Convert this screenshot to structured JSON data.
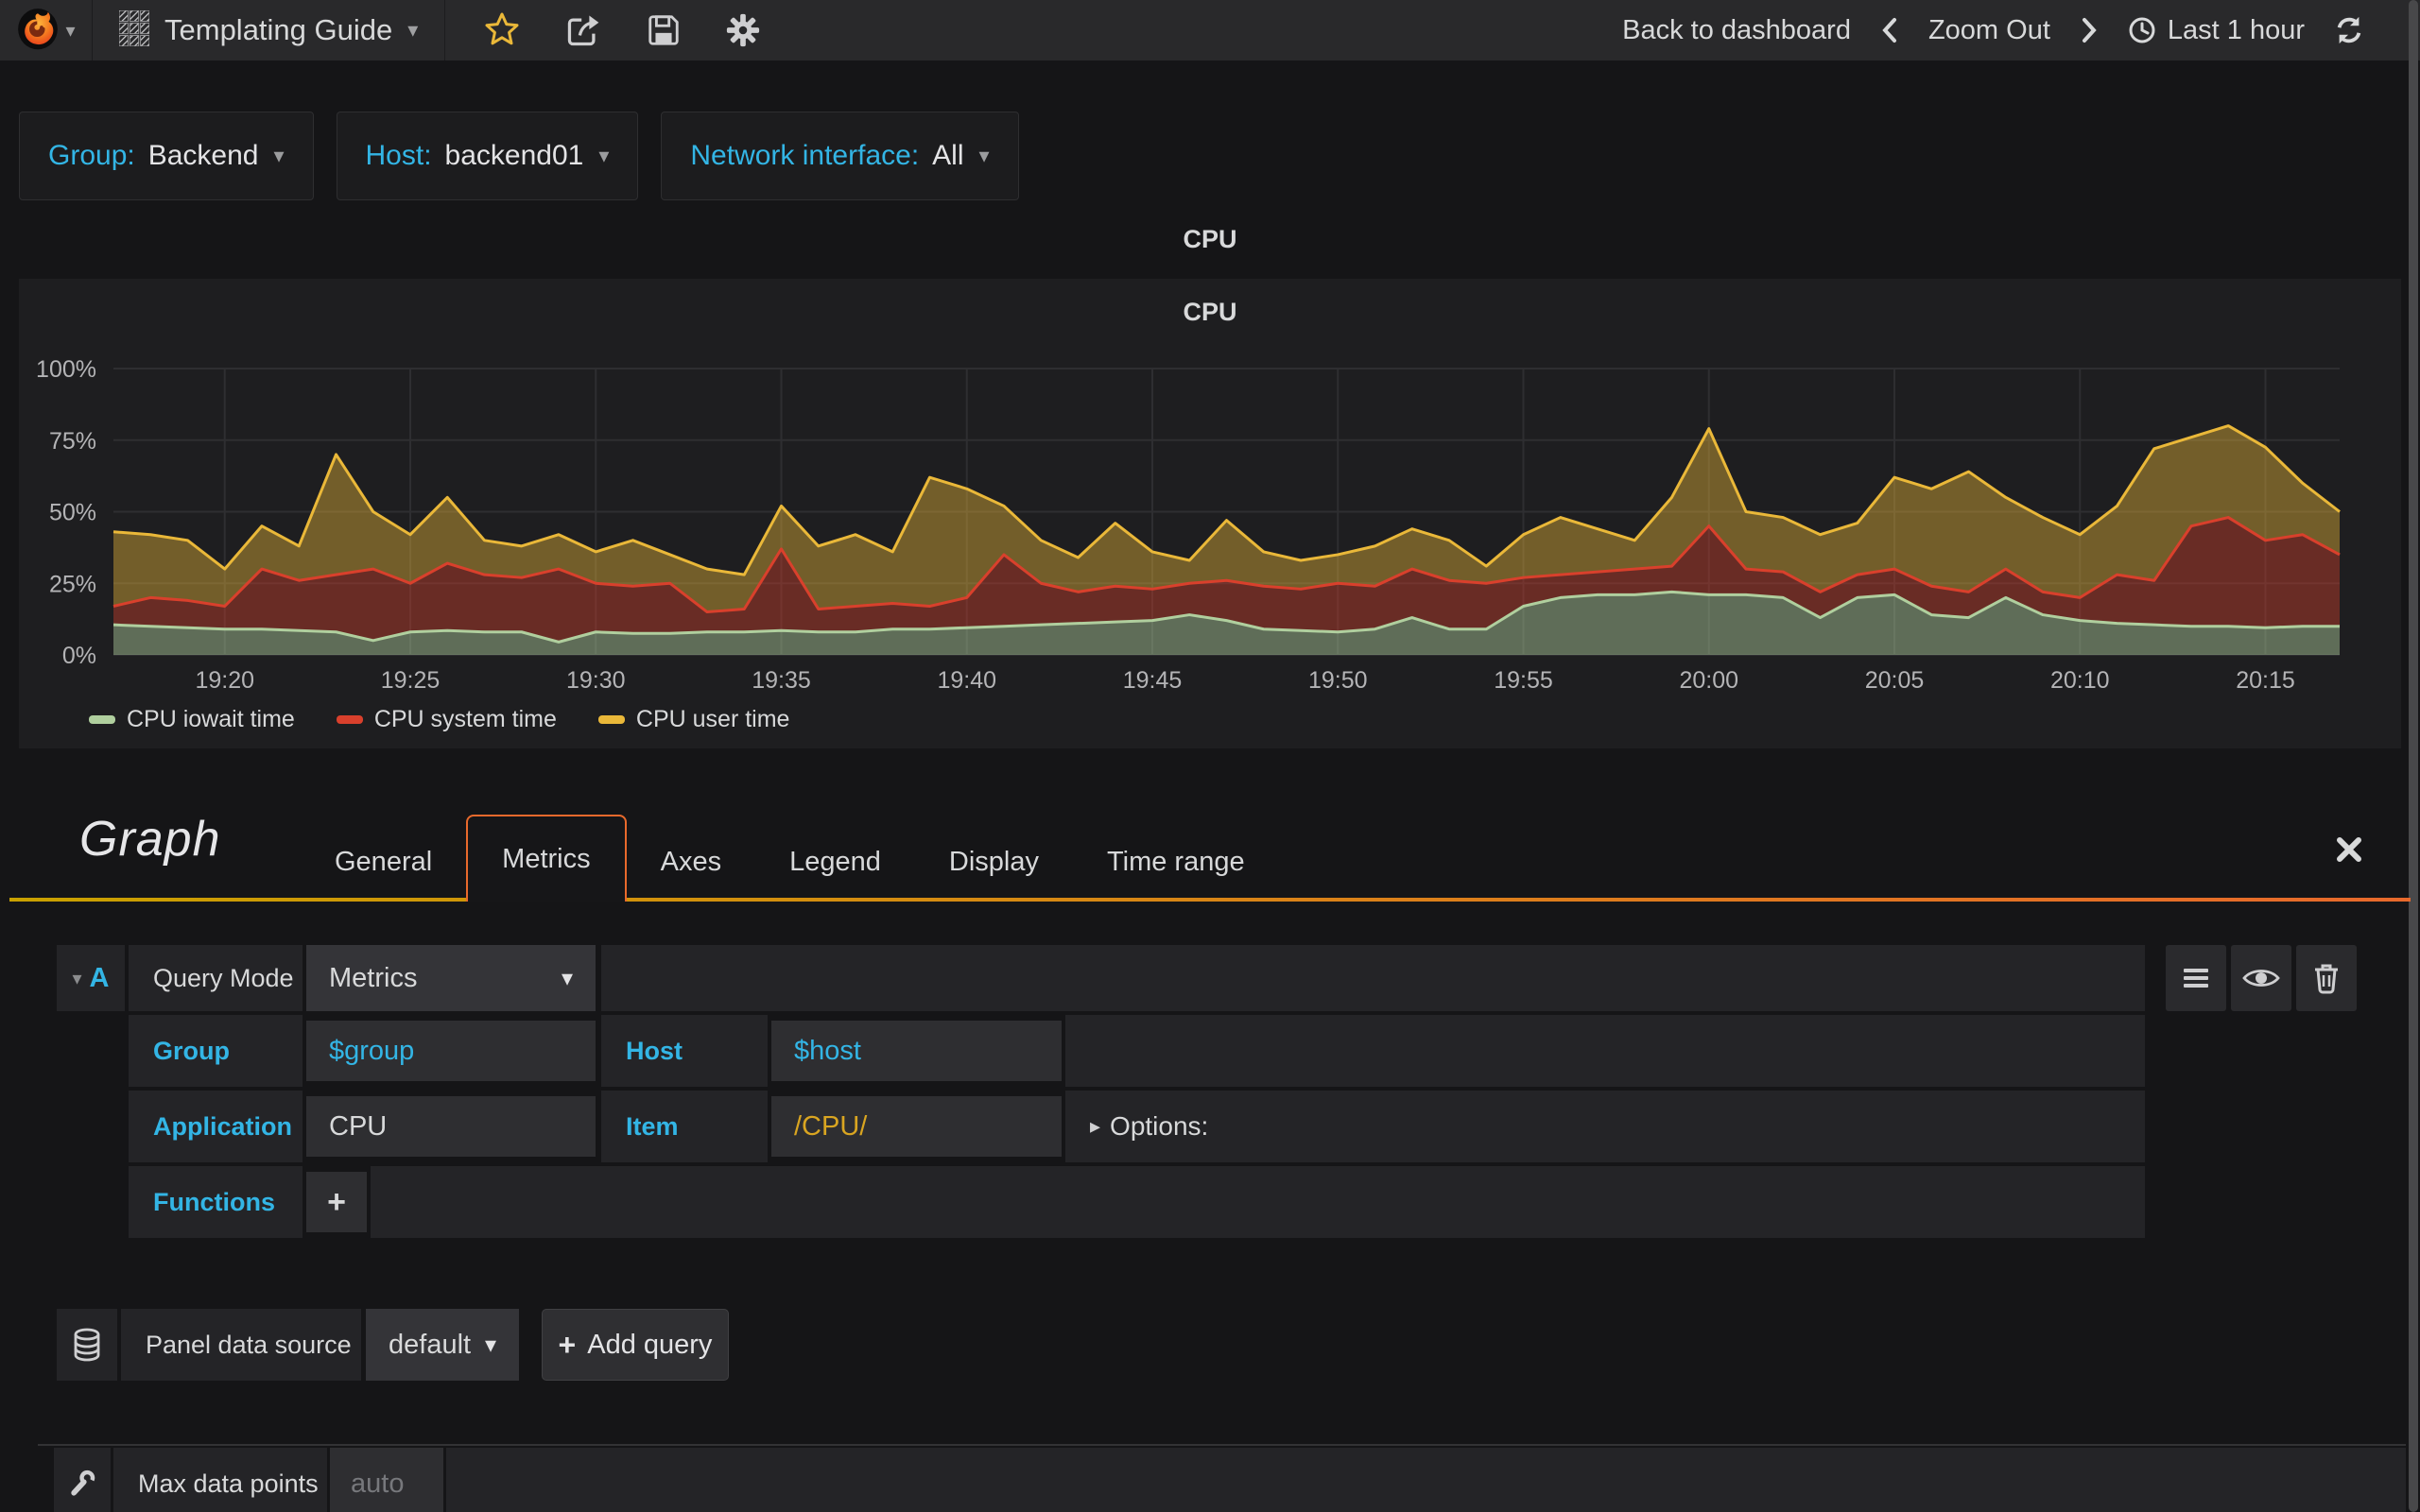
{
  "navbar": {
    "title": "Templating Guide",
    "back_to_dashboard": "Back to dashboard",
    "zoom_out": "Zoom Out",
    "time_range": "Last 1 hour"
  },
  "icons": {
    "caret_down": "▾",
    "options_arrow": "▸",
    "plus": "+"
  },
  "variables": [
    {
      "label": "Group:",
      "value": "Backend"
    },
    {
      "label": "Host:",
      "value": "backend01"
    },
    {
      "label": "Network interface:",
      "value": "All"
    }
  ],
  "row": {
    "title": "CPU"
  },
  "panel": {
    "title": "CPU"
  },
  "chart_data": {
    "type": "area",
    "stacked": true,
    "title": "CPU",
    "ylabel": "percent",
    "ylim": [
      0,
      100
    ],
    "y_ticks": [
      "0%",
      "25%",
      "50%",
      "75%",
      "100%"
    ],
    "x_ticks": [
      "19:20",
      "19:25",
      "19:30",
      "19:35",
      "19:40",
      "19:45",
      "19:50",
      "19:55",
      "20:00",
      "20:05",
      "20:10",
      "20:15"
    ],
    "x_tick_minutes": [
      3,
      8,
      13,
      18,
      23,
      28,
      33,
      38,
      43,
      48,
      53,
      58
    ],
    "x_span_minutes": 60,
    "grid": true,
    "legend_position": "bottom",
    "times": [
      "19:17",
      "19:18",
      "19:19",
      "19:20",
      "19:21",
      "19:22",
      "19:23",
      "19:24",
      "19:25",
      "19:26",
      "19:27",
      "19:28",
      "19:29",
      "19:30",
      "19:31",
      "19:32",
      "19:33",
      "19:34",
      "19:35",
      "19:36",
      "19:37",
      "19:38",
      "19:39",
      "19:40",
      "19:41",
      "19:42",
      "19:43",
      "19:44",
      "19:45",
      "19:46",
      "19:47",
      "19:48",
      "19:49",
      "19:50",
      "19:51",
      "19:52",
      "19:53",
      "19:54",
      "19:55",
      "19:56",
      "19:57",
      "19:58",
      "19:59",
      "20:00",
      "20:01",
      "20:02",
      "20:03",
      "20:04",
      "20:05",
      "20:06",
      "20:07",
      "20:08",
      "20:09",
      "20:10",
      "20:11",
      "20:12",
      "20:13",
      "20:14",
      "20:15",
      "20:16",
      "20:17"
    ],
    "series": [
      {
        "name": "CPU iowait time",
        "color": "#b0cf9e",
        "fill_opacity": 0.45,
        "values": [
          10.5,
          10,
          9.5,
          9,
          9,
          8.5,
          8,
          5,
          8,
          8.5,
          8,
          8,
          4.5,
          8,
          7.5,
          7.5,
          8,
          8,
          8.5,
          8,
          8,
          9,
          9,
          9.5,
          10,
          10.5,
          11,
          11.5,
          12,
          14,
          12,
          9,
          8.5,
          8,
          9,
          13,
          9,
          9,
          17,
          20,
          21,
          21,
          22,
          21,
          21,
          20,
          13,
          20,
          21,
          14,
          13,
          20,
          14,
          12,
          11,
          10.5,
          10,
          10,
          9.5,
          10,
          10
        ]
      },
      {
        "name": "CPU system time",
        "color": "#d9402c",
        "fill_opacity": 0.4,
        "values": [
          6.5,
          10,
          9.5,
          8,
          21,
          17.5,
          20,
          25,
          17,
          23.5,
          20,
          19,
          25.5,
          17,
          16.5,
          17.5,
          7,
          8,
          28.5,
          8,
          9,
          9,
          8,
          10.5,
          25,
          14.5,
          11,
          12.5,
          11,
          11,
          14,
          15,
          14.5,
          17,
          15,
          17,
          17,
          16,
          10,
          8,
          8,
          9,
          9,
          24,
          9,
          9,
          9,
          8,
          9,
          10,
          9,
          10,
          8,
          8,
          17,
          15.5,
          35,
          38,
          30.5,
          32,
          25
        ]
      },
      {
        "name": "CPU user time",
        "color": "#eab839",
        "fill_opacity": 0.42,
        "values": [
          26,
          22,
          21,
          13,
          15,
          12,
          42,
          20,
          17,
          23,
          12,
          11,
          12,
          11,
          16,
          10,
          15,
          12,
          15,
          22,
          25,
          18,
          45,
          38,
          17,
          15,
          12,
          22,
          13,
          8,
          21,
          12,
          10,
          10,
          14,
          14,
          14,
          6,
          15,
          20,
          15,
          10,
          24,
          34,
          20,
          19,
          20,
          18,
          32,
          34,
          42,
          25,
          26,
          22,
          24,
          46,
          31,
          32,
          32.5,
          18,
          15
        ]
      }
    ]
  },
  "editor": {
    "panel_type": "Graph",
    "tabs": [
      {
        "label": "General",
        "active": false
      },
      {
        "label": "Metrics",
        "active": true
      },
      {
        "label": "Axes",
        "active": false
      },
      {
        "label": "Legend",
        "active": false
      },
      {
        "label": "Display",
        "active": false
      },
      {
        "label": "Time range",
        "active": false
      }
    ]
  },
  "query": {
    "ref": "A",
    "mode_label": "Query Mode",
    "mode_value": "Metrics",
    "group_label": "Group",
    "group_value": "$group",
    "host_label": "Host",
    "host_value": "$host",
    "application_label": "Application",
    "application_value": "CPU",
    "item_label": "Item",
    "item_value": "/CPU/",
    "options_label": "Options:",
    "functions_label": "Functions"
  },
  "datasource": {
    "label": "Panel data source",
    "value": "default",
    "add_query": "Add query"
  },
  "settings": {
    "label": "Max data points",
    "placeholder": "auto"
  },
  "colors": {
    "accent_cyan": "#33b5e5",
    "accent_orange": "#e8692c",
    "variable_yellow": "#d9a521",
    "star_yellow": "#eab839",
    "navbar_bg": "#29292b",
    "panel_bg": "#1e1e20"
  }
}
